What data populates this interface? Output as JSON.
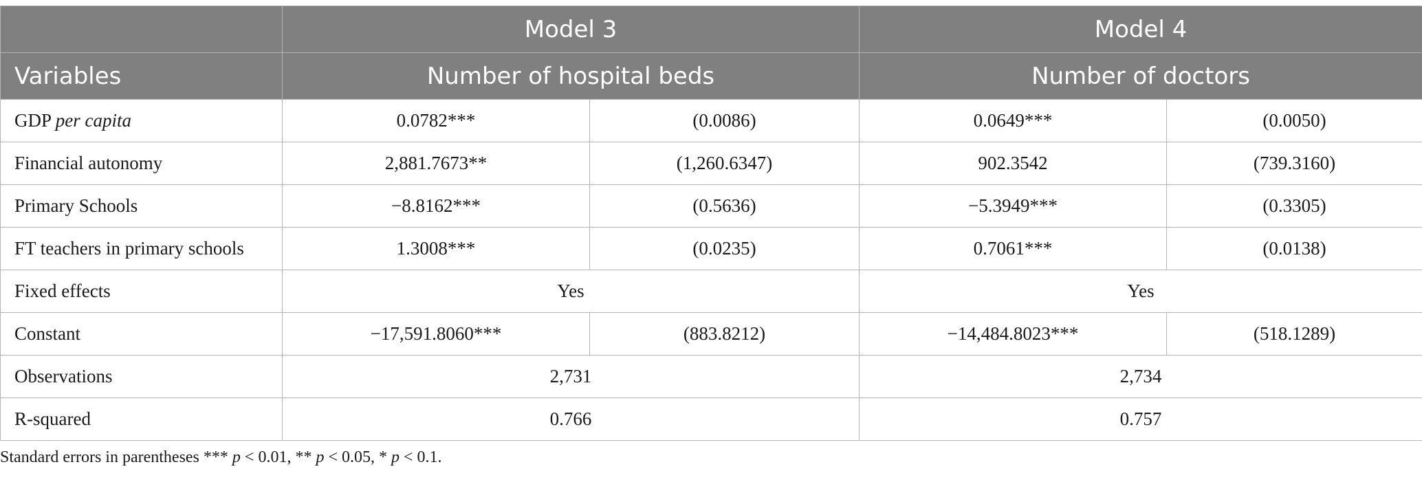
{
  "header": {
    "model3": "Model 3",
    "model4": "Model 4",
    "variables": "Variables",
    "dep3": "Number of hospital beds",
    "dep4": "Number of doctors"
  },
  "rows": {
    "gdp": {
      "label_main": "GDP ",
      "label_italic": "per capita",
      "m3_coef": "0.0782***",
      "m3_se": "(0.0086)",
      "m4_coef": "0.0649***",
      "m4_se": "(0.0050)"
    },
    "financial": {
      "label": "Financial autonomy",
      "m3_coef": "2,881.7673**",
      "m3_se": "(1,260.6347)",
      "m4_coef": "902.3542",
      "m4_se": "(739.3160)"
    },
    "primary": {
      "label": "Primary Schools",
      "m3_coef": "−8.8162***",
      "m3_se": "(0.5636)",
      "m4_coef": "−5.3949***",
      "m4_se": "(0.3305)"
    },
    "teachers": {
      "label": "FT teachers in primary schools",
      "m3_coef": "1.3008***",
      "m3_se": "(0.0235)",
      "m4_coef": "0.7061***",
      "m4_se": "(0.0138)"
    },
    "fixed": {
      "label": "Fixed effects",
      "m3": "Yes",
      "m4": "Yes"
    },
    "constant": {
      "label": "Constant",
      "m3_coef": "−17,591.8060***",
      "m3_se": "(883.8212)",
      "m4_coef": "−14,484.8023***",
      "m4_se": "(518.1289)"
    },
    "observations": {
      "label": "Observations",
      "m3": "2,731",
      "m4": "2,734"
    },
    "rsquared": {
      "label": "R-squared",
      "m3": "0.766",
      "m4": "0.757"
    }
  },
  "note": {
    "prefix": "Standard errors in parentheses *** ",
    "p": "p",
    "t1": " < 0.01, ** ",
    "t2": " < 0.05, * ",
    "t3": " < 0.1."
  }
}
